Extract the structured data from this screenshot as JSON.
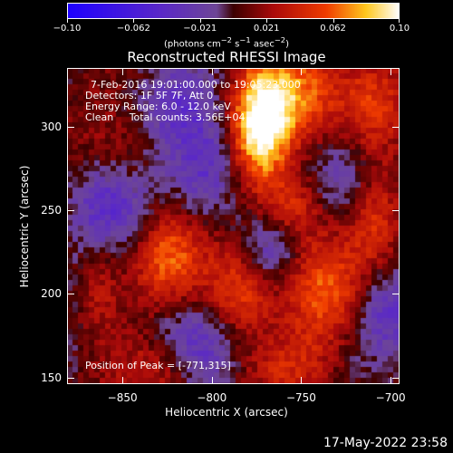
{
  "colorbar": {
    "tick_labels": [
      "−0.10",
      "−0.062",
      "−0.021",
      "0.021",
      "0.062",
      "0.10"
    ],
    "unit_label_html": "(photons cm<sup>−2</sup> s<sup>−1</sup> asec<sup>−2</sup>)"
  },
  "image_title": "Reconstructed RHESSI Image",
  "info": {
    "line1": "7-Feb-2016 19:01:00.000 to 19:05:23.000",
    "line2": "Detectors: 1F 5F 7F, Att 0",
    "line3": "Energy Range: 6.0 - 12.0 keV",
    "line4": "Clean     Total counts: 3.56E+04",
    "peak": "Position of Peak = [-771,315]"
  },
  "axes": {
    "xlabel": "Heliocentric X (arcsec)",
    "ylabel": "Heliocentric Y (arcsec)",
    "xticks": [
      {
        "value": -850,
        "label": "−850"
      },
      {
        "value": -800,
        "label": "−800"
      },
      {
        "value": -750,
        "label": "−750"
      },
      {
        "value": -700,
        "label": "−700"
      }
    ],
    "yticks": [
      {
        "value": 150,
        "label": "150"
      },
      {
        "value": 200,
        "label": "200"
      },
      {
        "value": 250,
        "label": "250"
      },
      {
        "value": 300,
        "label": "300"
      }
    ],
    "xlim": [
      -881,
      -695
    ],
    "ylim": [
      146,
      335
    ]
  },
  "footer_timestamp": "17-May-2022 23:58",
  "colors": {
    "background": "#000000",
    "negative": "#3300ff",
    "mid": "#6b3f8c",
    "positive_low": "#b01010",
    "positive_high": "#ffffff"
  }
}
